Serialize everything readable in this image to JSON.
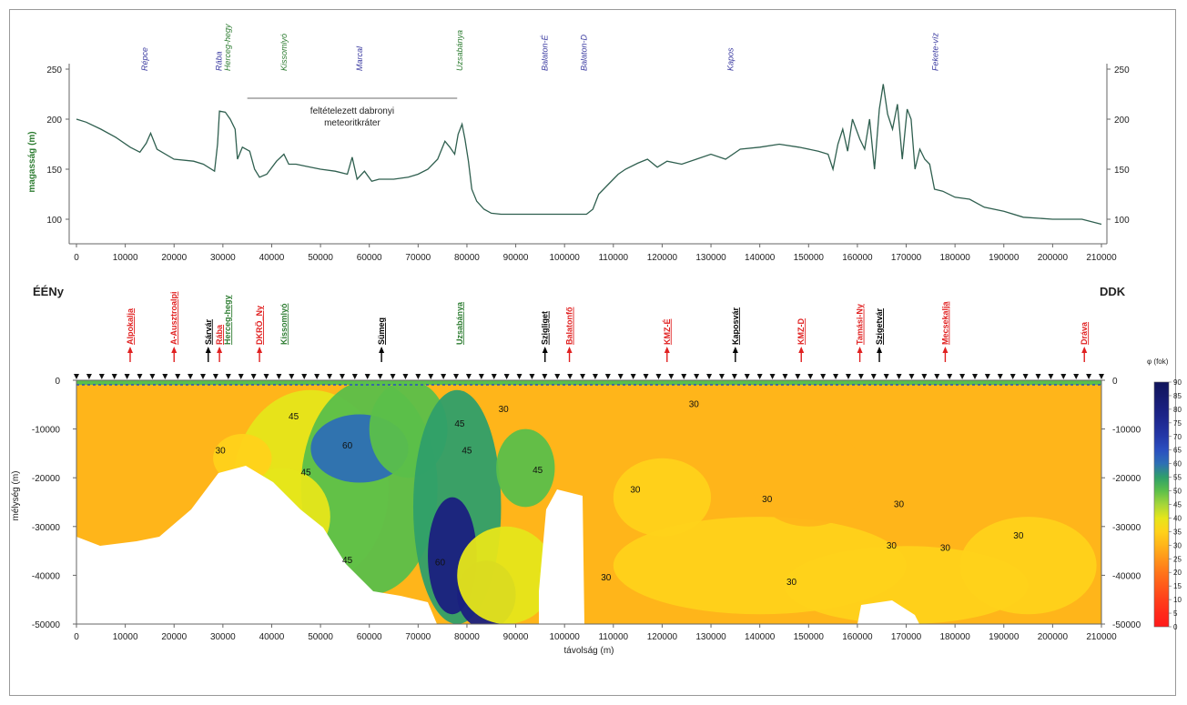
{
  "figure": {
    "left_label": "ÉÉNy",
    "right_label": "DDK"
  },
  "chart_data": [
    {
      "type": "line",
      "ylabel": "magasság (m)",
      "xlim": [
        0,
        210000
      ],
      "ylim": [
        95,
        250
      ],
      "x_ticks": [
        0,
        10000,
        20000,
        30000,
        40000,
        50000,
        60000,
        70000,
        80000,
        90000,
        100000,
        110000,
        120000,
        130000,
        140000,
        150000,
        160000,
        170000,
        180000,
        190000,
        200000,
        210000
      ],
      "y_ticks": [
        100,
        150,
        200,
        250
      ],
      "line_color": "#2f5f4f",
      "annotation": {
        "text": "feltételezett dabronyi meteoritkráter",
        "lines": [
          "feltételezett dabronyi",
          "meteoritkráter"
        ],
        "x_range": [
          35000,
          78000
        ]
      },
      "top_labels": [
        {
          "text": "Répce",
          "x": 14000,
          "color": "#3a3aa0"
        },
        {
          "text": "Rába",
          "x": 29200,
          "color": "#3a3aa0"
        },
        {
          "text": "Herceg-hegy",
          "x": 31000,
          "color": "#2e7d32"
        },
        {
          "text": "Kissomlyó",
          "x": 42500,
          "color": "#2e7d32"
        },
        {
          "text": "Marcal",
          "x": 58000,
          "color": "#3a3aa0"
        },
        {
          "text": "Uzsabánya",
          "x": 78500,
          "color": "#2e7d32"
        },
        {
          "text": "Balaton-É",
          "x": 96000,
          "color": "#3a3aa0"
        },
        {
          "text": "Balaton-D",
          "x": 104000,
          "color": "#3a3aa0"
        },
        {
          "text": "Kapos",
          "x": 134000,
          "color": "#3a3aa0"
        },
        {
          "text": "Fekete-víz",
          "x": 176000,
          "color": "#3a3aa0"
        }
      ],
      "series": [
        {
          "x": [
            0,
            2000,
            5000,
            8000,
            11000,
            13000,
            14300,
            15200,
            16500,
            20000,
            24000,
            26000,
            28300,
            28900,
            29300,
            30500,
            31500,
            32500,
            33000,
            34000,
            35500,
            36500,
            37500,
            39000,
            41000,
            42500,
            43500,
            45000,
            47000,
            50000,
            53000,
            55500,
            56500,
            57500,
            59000,
            60500,
            62000,
            65000,
            68000,
            70000,
            72000,
            74000,
            75500,
            76500,
            77500,
            78200,
            79000,
            79600,
            80300,
            81000,
            82000,
            83500,
            85000,
            87000,
            89000,
            95000,
            100000,
            104500,
            105800,
            107000,
            109000,
            111000,
            112500,
            115000,
            117000,
            119000,
            121000,
            124000,
            127000,
            130000,
            133000,
            136000,
            140000,
            144000,
            148000,
            152000,
            154000,
            155000,
            156000,
            157000,
            158000,
            159000,
            160500,
            161500,
            162500,
            163500,
            164500,
            165300,
            166200,
            167200,
            168200,
            169200,
            170200,
            171000,
            171800,
            172800,
            173800,
            174800,
            175800,
            177500,
            180000,
            183000,
            186000,
            190000,
            194000,
            200000,
            206000,
            210000
          ],
          "y": [
            200,
            197,
            190,
            182,
            172,
            167,
            176,
            186,
            170,
            160,
            158,
            155,
            148,
            175,
            208,
            207,
            200,
            190,
            160,
            172,
            168,
            150,
            142,
            145,
            158,
            165,
            155,
            155,
            153,
            150,
            148,
            145,
            162,
            140,
            148,
            138,
            140,
            140,
            142,
            145,
            150,
            160,
            178,
            172,
            165,
            185,
            195,
            180,
            158,
            130,
            118,
            110,
            106,
            105,
            105,
            105,
            105,
            105,
            110,
            125,
            135,
            145,
            150,
            156,
            160,
            152,
            158,
            155,
            160,
            165,
            160,
            170,
            172,
            175,
            172,
            168,
            165,
            150,
            175,
            190,
            168,
            200,
            180,
            170,
            200,
            150,
            210,
            235,
            205,
            190,
            215,
            160,
            210,
            200,
            150,
            170,
            160,
            155,
            130,
            128,
            122,
            120,
            112,
            108,
            102,
            100,
            100,
            95
          ]
        }
      ]
    },
    {
      "type": "heatmap",
      "xlabel": "távolság (m)",
      "ylabel": "mélység (m)",
      "xlim": [
        0,
        210000
      ],
      "ylim": [
        -50000,
        0
      ],
      "x_ticks": [
        0,
        10000,
        20000,
        30000,
        40000,
        50000,
        60000,
        70000,
        80000,
        90000,
        100000,
        110000,
        120000,
        130000,
        140000,
        150000,
        160000,
        170000,
        180000,
        190000,
        200000,
        210000
      ],
      "y_ticks": [
        0,
        -10000,
        -20000,
        -30000,
        -40000,
        -50000
      ],
      "colorbar": {
        "title": "φ (fok)",
        "ticks": [
          90,
          85,
          80,
          75,
          70,
          65,
          60,
          55,
          50,
          45,
          40,
          35,
          30,
          25,
          20,
          15,
          10,
          5,
          0
        ],
        "colors": [
          "#ff1a1a",
          "#ff2a1a",
          "#ff3f1a",
          "#ff5a1a",
          "#ff751a",
          "#ff951a",
          "#ffb51a",
          "#ffd21a",
          "#e6e61a",
          "#a5d63a",
          "#5bbf4a",
          "#2f9f6a",
          "#2d6fb5",
          "#2a4fc0",
          "#2438a8",
          "#1f2a93",
          "#1a2080",
          "#151a6c",
          "#10145a"
        ]
      },
      "contour_labels": [
        {
          "text": "30",
          "x": 29500,
          "y": -15000
        },
        {
          "text": "45",
          "x": 47000,
          "y": -19500
        },
        {
          "text": "45",
          "x": 44500,
          "y": -8000
        },
        {
          "text": "60",
          "x": 55500,
          "y": -14000
        },
        {
          "text": "45",
          "x": 78500,
          "y": -9500
        },
        {
          "text": "45",
          "x": 80000,
          "y": -15000
        },
        {
          "text": "30",
          "x": 87500,
          "y": -6500
        },
        {
          "text": "45",
          "x": 94500,
          "y": -19000
        },
        {
          "text": "60",
          "x": 74500,
          "y": -38000
        },
        {
          "text": "45",
          "x": 55500,
          "y": -37500
        },
        {
          "text": "30",
          "x": 114500,
          "y": -23000
        },
        {
          "text": "30",
          "x": 108500,
          "y": -41000
        },
        {
          "text": "30",
          "x": 126500,
          "y": -5500
        },
        {
          "text": "30",
          "x": 141500,
          "y": -25000
        },
        {
          "text": "30",
          "x": 146500,
          "y": -42000
        },
        {
          "text": "30",
          "x": 168500,
          "y": -26000
        },
        {
          "text": "30",
          "x": 167000,
          "y": -34500
        },
        {
          "text": "30",
          "x": 178000,
          "y": -35000
        },
        {
          "text": "30",
          "x": 193000,
          "y": -32500
        }
      ],
      "well_labels": [
        {
          "text": "Alpokalja",
          "x": 11000,
          "color": "#e02020",
          "arrow": "red"
        },
        {
          "text": "A-Ausztroalpi",
          "x": 20000,
          "color": "#e02020",
          "arrow": "red"
        },
        {
          "text": "Sárvár",
          "x": 27000,
          "color": "#000000",
          "arrow": "black"
        },
        {
          "text": "Rába",
          "x": 29300,
          "color": "#e02020",
          "arrow": "red"
        },
        {
          "text": "Herceg-hegy",
          "x": 31000,
          "color": "#2e7d32",
          "arrow": "none"
        },
        {
          "text": "DKRÖ_Ny",
          "x": 37500,
          "color": "#e02020",
          "arrow": "red"
        },
        {
          "text": "Kissomlyó",
          "x": 42500,
          "color": "#2e7d32",
          "arrow": "none"
        },
        {
          "text": "Sümeg",
          "x": 62500,
          "color": "#000000",
          "arrow": "black"
        },
        {
          "text": "Uzsabánya",
          "x": 78500,
          "color": "#2e7d32",
          "arrow": "none"
        },
        {
          "text": "Szigliget",
          "x": 96000,
          "color": "#000000",
          "arrow": "black"
        },
        {
          "text": "Balatonfő",
          "x": 101000,
          "color": "#e02020",
          "arrow": "red"
        },
        {
          "text": "KMZ-É",
          "x": 121000,
          "color": "#e02020",
          "arrow": "red"
        },
        {
          "text": "Kaposvár",
          "x": 135000,
          "color": "#000000",
          "arrow": "black"
        },
        {
          "text": "KMZ-D",
          "x": 148500,
          "color": "#e02020",
          "arrow": "red"
        },
        {
          "text": "Tamási-Ny",
          "x": 160500,
          "color": "#e02020",
          "arrow": "red"
        },
        {
          "text": "Szigetvár",
          "x": 164500,
          "color": "#000000",
          "arrow": "black"
        },
        {
          "text": "Mecsekalja",
          "x": 178000,
          "color": "#e02020",
          "arrow": "red"
        },
        {
          "text": "Dráva",
          "x": 206500,
          "color": "#e02020",
          "arrow": "red"
        }
      ]
    }
  ]
}
